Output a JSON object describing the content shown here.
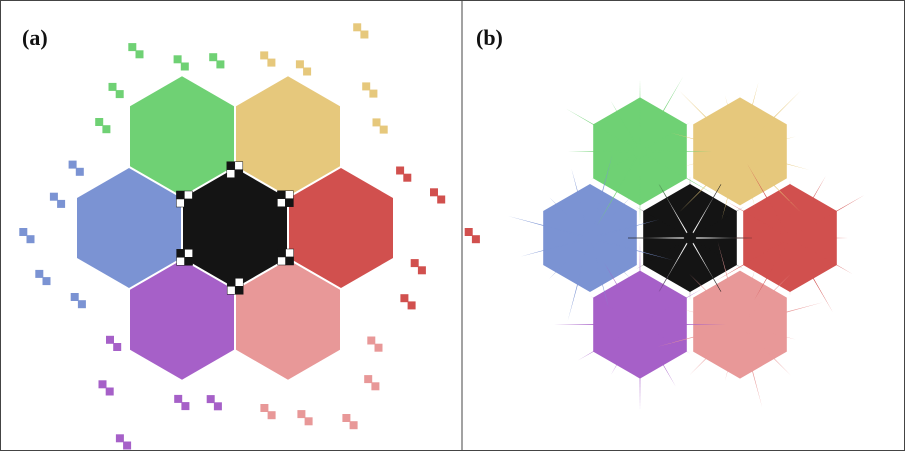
{
  "panels": [
    {
      "id": "a",
      "label": "(a)",
      "style": "pixelated"
    },
    {
      "id": "b",
      "label": "(b)",
      "style": "star"
    }
  ],
  "tiles": [
    {
      "name": "center",
      "color": "#141414"
    },
    {
      "name": "top-left",
      "color": "#6fd174"
    },
    {
      "name": "top-right",
      "color": "#e6c87c"
    },
    {
      "name": "right",
      "color": "#d1504e"
    },
    {
      "name": "bottom-right",
      "color": "#e89898"
    },
    {
      "name": "bottom-left",
      "color": "#a660c8"
    },
    {
      "name": "left",
      "color": "#7b93d3"
    }
  ],
  "colors": {
    "frame": "#444444",
    "background": "#ffffff",
    "checker_light": "#ffffff",
    "checker_dark": "#141414"
  }
}
